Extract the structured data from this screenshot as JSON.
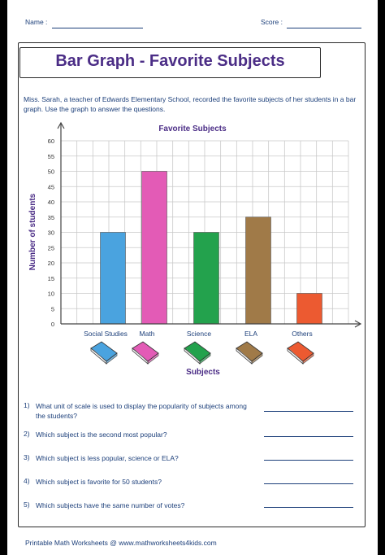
{
  "header": {
    "name_label": "Name :",
    "score_label": "Score :"
  },
  "title": "Bar Graph - Favorite Subjects",
  "intro": "Miss. Sarah, a teacher of Edwards Elementary School, recorded the favorite subjects of her students in a bar graph. Use the graph to answer the questions.",
  "chart_data": {
    "type": "bar",
    "title": "Favorite Subjects",
    "xlabel": "Subjects",
    "ylabel": "Number of students",
    "categories": [
      "Social Studies",
      "Math",
      "Science",
      "ELA",
      "Others"
    ],
    "values": [
      30,
      50,
      30,
      35,
      10
    ],
    "colors": [
      "#4aa3df",
      "#e35bb6",
      "#23a24d",
      "#a07a48",
      "#ec5a31"
    ],
    "ylim": [
      0,
      60
    ],
    "yticks": [
      "0",
      "5",
      "10",
      "15",
      "20",
      "25",
      "30",
      "35",
      "40",
      "45",
      "50",
      "55",
      "60"
    ],
    "grid": true,
    "legend": "book icons below each category"
  },
  "questions": [
    {
      "num": "1)",
      "text": "What unit of scale is used to display the popularity of subjects among the students?"
    },
    {
      "num": "2)",
      "text": "Which subject is the second most popular?"
    },
    {
      "num": "3)",
      "text": "Which subject is less popular, science or ELA?"
    },
    {
      "num": "4)",
      "text": "Which subject is favorite for 50 students?"
    },
    {
      "num": "5)",
      "text": "Which subjects have the same number of votes?"
    }
  ],
  "footer": "Printable Math Worksheets @ www.mathworksheets4kids.com"
}
